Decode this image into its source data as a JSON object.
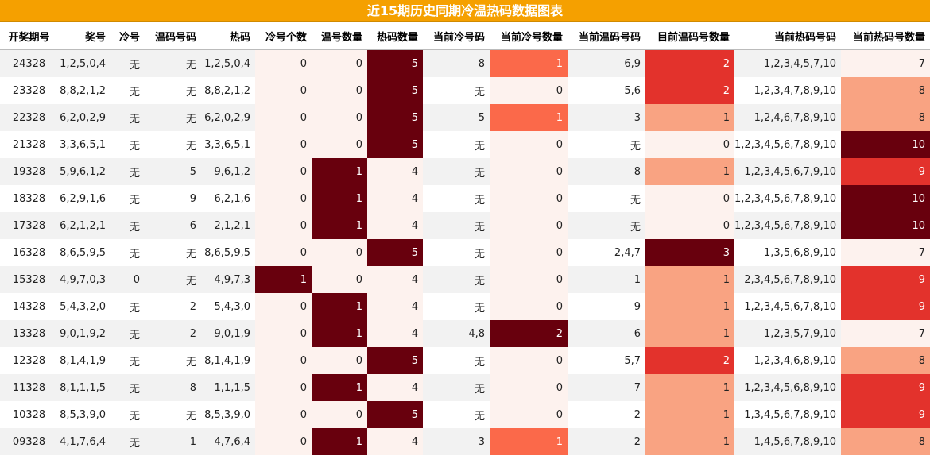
{
  "title": "近15期历史同期冷温热码数据图表",
  "colors": {
    "header_bg": "#f5a000",
    "level0": "#fdf2ee",
    "level1": "#f9a382",
    "level2": "#e3322c",
    "level3": "#68000d",
    "cold1": "#fb694a",
    "cold2": "#68000d"
  },
  "columns": [
    "开奖期号",
    "奖号",
    "冷号",
    "温码号码",
    "热码",
    "冷号个数",
    "温号数量",
    "热码数量",
    "当前冷号码",
    "当前冷号数量",
    "当前温码号码",
    "目前温码号数量",
    "当前热码号码",
    "当前热码号数量"
  ],
  "chart_data": {
    "type": "table",
    "rows": [
      [
        "24328",
        "1,2,5,0,4",
        "无",
        "无",
        "1,2,5,0,4",
        0,
        0,
        5,
        "8",
        1,
        "6,9",
        2,
        "1,2,3,4,5,7,10",
        7
      ],
      [
        "23328",
        "8,8,2,1,2",
        "无",
        "无",
        "8,8,2,1,2",
        0,
        0,
        5,
        "无",
        0,
        "5,6",
        2,
        "1,2,3,4,7,8,9,10",
        8
      ],
      [
        "22328",
        "6,2,0,2,9",
        "无",
        "无",
        "6,2,0,2,9",
        0,
        0,
        5,
        "5",
        1,
        "3",
        1,
        "1,2,4,6,7,8,9,10",
        8
      ],
      [
        "21328",
        "3,3,6,5,1",
        "无",
        "无",
        "3,3,6,5,1",
        0,
        0,
        5,
        "无",
        0,
        "无",
        0,
        "1,2,3,4,5,6,7,8,9,10",
        10
      ],
      [
        "19328",
        "5,9,6,1,2",
        "无",
        "5",
        "9,6,1,2",
        0,
        1,
        4,
        "无",
        0,
        "8",
        1,
        "1,2,3,4,5,6,7,9,10",
        9
      ],
      [
        "18328",
        "6,2,9,1,6",
        "无",
        "9",
        "6,2,1,6",
        0,
        1,
        4,
        "无",
        0,
        "无",
        0,
        "1,2,3,4,5,6,7,8,9,10",
        10
      ],
      [
        "17328",
        "6,2,1,2,1",
        "无",
        "6",
        "2,1,2,1",
        0,
        1,
        4,
        "无",
        0,
        "无",
        0,
        "1,2,3,4,5,6,7,8,9,10",
        10
      ],
      [
        "16328",
        "8,6,5,9,5",
        "无",
        "无",
        "8,6,5,9,5",
        0,
        0,
        5,
        "无",
        0,
        "2,4,7",
        3,
        "1,3,5,6,8,9,10",
        7
      ],
      [
        "15328",
        "4,9,7,0,3",
        "0",
        "无",
        "4,9,7,3",
        1,
        0,
        4,
        "无",
        0,
        "1",
        1,
        "2,3,4,5,6,7,8,9,10",
        9
      ],
      [
        "14328",
        "5,4,3,2,0",
        "无",
        "2",
        "5,4,3,0",
        0,
        1,
        4,
        "无",
        0,
        "9",
        1,
        "1,2,3,4,5,6,7,8,10",
        9
      ],
      [
        "13328",
        "9,0,1,9,2",
        "无",
        "2",
        "9,0,1,9",
        0,
        1,
        4,
        "4,8",
        2,
        "6",
        1,
        "1,2,3,5,7,9,10",
        7
      ],
      [
        "12328",
        "8,1,4,1,9",
        "无",
        "无",
        "8,1,4,1,9",
        0,
        0,
        5,
        "无",
        0,
        "5,7",
        2,
        "1,2,3,4,6,8,9,10",
        8
      ],
      [
        "11328",
        "8,1,1,1,5",
        "无",
        "8",
        "1,1,1,5",
        0,
        1,
        4,
        "无",
        0,
        "7",
        1,
        "1,2,3,4,5,6,8,9,10",
        9
      ],
      [
        "10328",
        "8,5,3,9,0",
        "无",
        "无",
        "8,5,3,9,0",
        0,
        0,
        5,
        "无",
        0,
        "2",
        1,
        "1,3,4,5,6,7,8,9,10",
        9
      ],
      [
        "09328",
        "4,1,7,6,4",
        "无",
        "1",
        "4,7,6,4",
        0,
        1,
        4,
        "3",
        1,
        "2",
        1,
        "1,4,5,6,7,8,9,10",
        8
      ]
    ]
  }
}
